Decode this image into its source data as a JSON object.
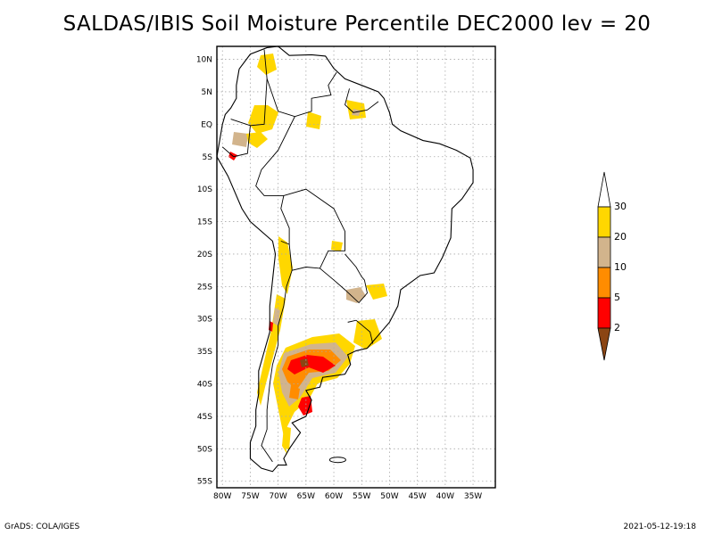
{
  "title": "SALDAS/IBIS Soil Moisture Percentile DEC2000 lev = 20",
  "map": {
    "lon_range": [
      -81,
      -31
    ],
    "lat_range": [
      -56,
      12
    ],
    "lat_ticks": [
      {
        "lat": 10,
        "label": "10N"
      },
      {
        "lat": 5,
        "label": "5N"
      },
      {
        "lat": 0,
        "label": "EQ"
      },
      {
        "lat": -5,
        "label": "5S"
      },
      {
        "lat": -10,
        "label": "10S"
      },
      {
        "lat": -15,
        "label": "15S"
      },
      {
        "lat": -20,
        "label": "20S"
      },
      {
        "lat": -25,
        "label": "25S"
      },
      {
        "lat": -30,
        "label": "30S"
      },
      {
        "lat": -35,
        "label": "35S"
      },
      {
        "lat": -40,
        "label": "40S"
      },
      {
        "lat": -45,
        "label": "45S"
      },
      {
        "lat": -50,
        "label": "50S"
      },
      {
        "lat": -55,
        "label": "55S"
      }
    ],
    "lon_ticks": [
      {
        "lon": -80,
        "label": "80W"
      },
      {
        "lon": -75,
        "label": "75W"
      },
      {
        "lon": -70,
        "label": "70W"
      },
      {
        "lon": -65,
        "label": "65W"
      },
      {
        "lon": -60,
        "label": "60W"
      },
      {
        "lon": -55,
        "label": "55W"
      },
      {
        "lon": -50,
        "label": "50W"
      },
      {
        "lon": -45,
        "label": "45W"
      },
      {
        "lon": -40,
        "label": "40W"
      },
      {
        "lon": -35,
        "label": "35W"
      }
    ]
  },
  "legend": {
    "levels": [
      "2",
      "5",
      "10",
      "20",
      "30"
    ],
    "colors": [
      "#8b4513",
      "#ff0000",
      "#ff8c00",
      "#d2b48c",
      "#ffd700",
      "#ffffff"
    ]
  },
  "footer": {
    "left": "GrADS: COLA/IGES",
    "right": "2021-05-12-19:18"
  }
}
